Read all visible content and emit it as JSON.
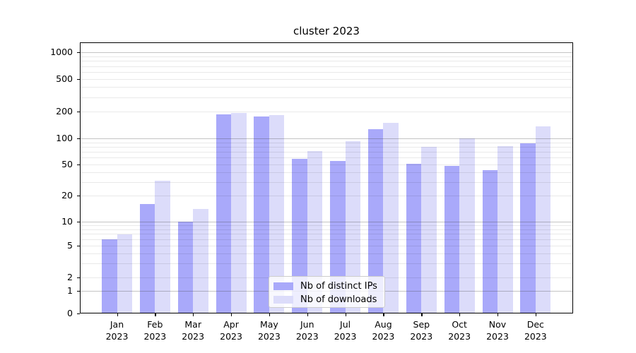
{
  "title": "cluster 2023",
  "legend": {
    "items": [
      {
        "label": "Nb of distinct IPs",
        "color": "#a9a9fa"
      },
      {
        "label": "Nb of downloads",
        "color": "#dcdcfa"
      }
    ]
  },
  "chart_data": {
    "type": "bar",
    "title": "cluster 2023",
    "xlabel": "",
    "ylabel": "",
    "yscale": "symlog",
    "grid": "horizontal, minor + major, drawn over bars",
    "legend_position": "inside, lower center",
    "x": [
      "Jan 2023",
      "Feb 2023",
      "Mar 2023",
      "Apr 2023",
      "May 2023",
      "Jun 2023",
      "Jul 2023",
      "Aug 2023",
      "Sep 2023",
      "Oct 2023",
      "Nov 2023",
      "Dec 2023"
    ],
    "x_tick_top": [
      "Jan",
      "Feb",
      "Mar",
      "Apr",
      "May",
      "Jun",
      "Jul",
      "Aug",
      "Sep",
      "Oct",
      "Nov",
      "Dec"
    ],
    "x_tick_bottom": [
      "2023",
      "2023",
      "2023",
      "2023",
      "2023",
      "2023",
      "2023",
      "2023",
      "2023",
      "2023",
      "2023",
      "2023"
    ],
    "y_ticks": [
      0,
      1,
      2,
      5,
      10,
      20,
      50,
      100,
      200,
      500,
      1000
    ],
    "y_tick_labels": [
      "0",
      "1",
      "2",
      "5",
      "10",
      "20",
      "50",
      "100",
      "200",
      "500",
      "1000"
    ],
    "ylim": [
      0,
      1300
    ],
    "series": [
      {
        "name": "Nb of distinct IPs",
        "color": "#a9a9fa",
        "values": [
          6,
          16,
          10,
          186,
          176,
          58,
          55,
          127,
          51,
          48,
          42,
          88
        ]
      },
      {
        "name": "Nb of downloads",
        "color": "#dcdcfa",
        "values": [
          7,
          31,
          14,
          193,
          184,
          72,
          92,
          150,
          80,
          100,
          81,
          136
        ]
      }
    ]
  },
  "colors": {
    "bar_dark": "#a9a9fa",
    "bar_light": "#dcdcfa",
    "axis": "#000000",
    "grid_major": "#b4b4b4",
    "grid_minor": "#e9e9e9",
    "legend_border": "#cccccc",
    "background": "#ffffff"
  }
}
